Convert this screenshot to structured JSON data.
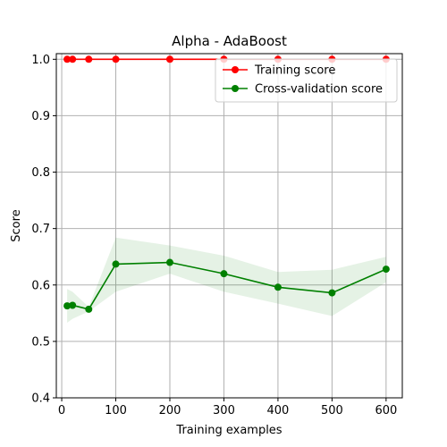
{
  "chart_data": {
    "type": "line",
    "title": "Alpha - AdaBoost",
    "xlabel": "Training examples",
    "ylabel": "Score",
    "xlim": [
      -10,
      630
    ],
    "ylim": [
      0.4,
      1.01
    ],
    "xticks": [
      0,
      100,
      200,
      300,
      400,
      500,
      600
    ],
    "yticks": [
      0.4,
      0.5,
      0.6,
      0.7,
      0.8,
      0.9,
      1.0
    ],
    "grid": true,
    "legend_position": "top-right",
    "x": [
      10,
      20,
      50,
      100,
      200,
      300,
      400,
      500,
      600
    ],
    "series": [
      {
        "name": "Training score",
        "color": "#ff0000",
        "values": [
          1.0,
          1.0,
          1.0,
          1.0,
          1.0,
          1.0,
          1.0,
          1.0,
          1.0
        ],
        "lower": [
          1.0,
          1.0,
          1.0,
          1.0,
          1.0,
          1.0,
          1.0,
          1.0,
          1.0
        ],
        "upper": [
          1.0,
          1.0,
          1.0,
          1.0,
          1.0,
          1.0,
          1.0,
          1.0,
          1.0
        ]
      },
      {
        "name": "Cross-validation score",
        "color": "#008000",
        "band_color": "#008000",
        "values": [
          0.563,
          0.564,
          0.557,
          0.637,
          0.64,
          0.62,
          0.596,
          0.586,
          0.628
        ],
        "lower": [
          0.533,
          0.54,
          0.553,
          0.588,
          0.62,
          0.588,
          0.567,
          0.545,
          0.605
        ],
        "upper": [
          0.593,
          0.588,
          0.561,
          0.684,
          0.67,
          0.652,
          0.623,
          0.627,
          0.65
        ]
      }
    ]
  }
}
